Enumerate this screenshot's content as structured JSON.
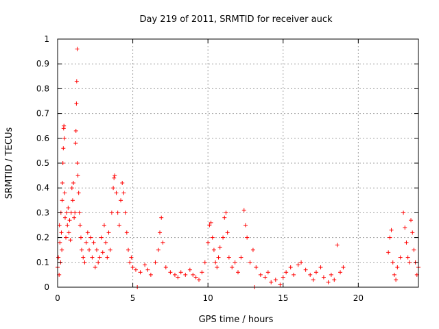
{
  "chart_data": {
    "type": "scatter",
    "title": "Day 219 of 2011, SRMTID for receiver auck",
    "xlabel": "GPS time / hours",
    "ylabel": "SRMTID / TECUs",
    "xlim": [
      0,
      24
    ],
    "ylim": [
      0,
      1
    ],
    "x_ticks": [
      0,
      5,
      10,
      15,
      20
    ],
    "y_ticks": [
      0,
      0.1,
      0.2,
      0.3,
      0.4,
      0.5,
      0.6,
      0.7,
      0.8,
      0.9,
      1
    ],
    "x_tick_labels": [
      "0",
      "5",
      "10",
      "15",
      "20"
    ],
    "y_tick_labels": [
      "0",
      "0.1",
      "0.2",
      "0.3",
      "0.4",
      "0.5",
      "0.6",
      "0.7",
      "0.8",
      "0.9",
      "1"
    ],
    "grid": true,
    "marker": "+",
    "series_color": "#ff0000",
    "points": [
      [
        0.0,
        0.08
      ],
      [
        0.05,
        0.12
      ],
      [
        0.1,
        0.05
      ],
      [
        0.12,
        0.25
      ],
      [
        0.15,
        0.18
      ],
      [
        0.2,
        0.1
      ],
      [
        0.22,
        0.3
      ],
      [
        0.25,
        0.22
      ],
      [
        0.28,
        0.15
      ],
      [
        0.3,
        0.35
      ],
      [
        0.32,
        0.42
      ],
      [
        0.35,
        0.5
      ],
      [
        0.38,
        0.56
      ],
      [
        0.4,
        0.64
      ],
      [
        0.42,
        0.65
      ],
      [
        0.45,
        0.6
      ],
      [
        0.48,
        0.38
      ],
      [
        0.5,
        0.28
      ],
      [
        0.55,
        0.2
      ],
      [
        0.6,
        0.3
      ],
      [
        0.65,
        0.25
      ],
      [
        0.7,
        0.32
      ],
      [
        0.75,
        0.22
      ],
      [
        0.8,
        0.27
      ],
      [
        0.85,
        0.19
      ],
      [
        0.9,
        0.3
      ],
      [
        0.95,
        0.4
      ],
      [
        1.0,
        0.35
      ],
      [
        1.05,
        0.42
      ],
      [
        1.1,
        0.28
      ],
      [
        1.15,
        0.3
      ],
      [
        1.2,
        0.58
      ],
      [
        1.22,
        0.63
      ],
      [
        1.25,
        0.74
      ],
      [
        1.27,
        0.83
      ],
      [
        1.3,
        0.96
      ],
      [
        1.32,
        0.5
      ],
      [
        1.35,
        0.45
      ],
      [
        1.4,
        0.38
      ],
      [
        1.45,
        0.3
      ],
      [
        1.5,
        0.25
      ],
      [
        1.55,
        0.2
      ],
      [
        1.6,
        0.15
      ],
      [
        1.7,
        0.12
      ],
      [
        1.8,
        0.1
      ],
      [
        1.9,
        0.18
      ],
      [
        2.0,
        0.22
      ],
      [
        2.1,
        0.15
      ],
      [
        2.2,
        0.2
      ],
      [
        2.3,
        0.12
      ],
      [
        2.4,
        0.18
      ],
      [
        2.5,
        0.08
      ],
      [
        2.6,
        0.15
      ],
      [
        2.7,
        0.1
      ],
      [
        2.8,
        0.12
      ],
      [
        2.9,
        0.2
      ],
      [
        3.0,
        0.14
      ],
      [
        3.1,
        0.25
      ],
      [
        3.2,
        0.18
      ],
      [
        3.3,
        0.12
      ],
      [
        3.4,
        0.22
      ],
      [
        3.5,
        0.15
      ],
      [
        3.6,
        0.3
      ],
      [
        3.7,
        0.4
      ],
      [
        3.75,
        0.44
      ],
      [
        3.8,
        0.45
      ],
      [
        3.9,
        0.38
      ],
      [
        4.0,
        0.3
      ],
      [
        4.1,
        0.25
      ],
      [
        4.2,
        0.35
      ],
      [
        4.3,
        0.42
      ],
      [
        4.4,
        0.38
      ],
      [
        4.5,
        0.3
      ],
      [
        4.6,
        0.22
      ],
      [
        4.7,
        0.15
      ],
      [
        4.8,
        0.1
      ],
      [
        4.9,
        0.12
      ],
      [
        5.0,
        0.08
      ],
      [
        5.2,
        0.07
      ],
      [
        5.3,
        0.0
      ],
      [
        5.5,
        0.06
      ],
      [
        5.8,
        0.09
      ],
      [
        6.0,
        0.07
      ],
      [
        6.2,
        0.05
      ],
      [
        6.5,
        0.1
      ],
      [
        6.7,
        0.15
      ],
      [
        6.8,
        0.22
      ],
      [
        6.9,
        0.28
      ],
      [
        7.0,
        0.18
      ],
      [
        7.2,
        0.08
      ],
      [
        7.5,
        0.06
      ],
      [
        7.8,
        0.05
      ],
      [
        8.0,
        0.04
      ],
      [
        8.2,
        0.06
      ],
      [
        8.5,
        0.05
      ],
      [
        8.8,
        0.07
      ],
      [
        9.0,
        0.05
      ],
      [
        9.2,
        0.04
      ],
      [
        9.4,
        0.03
      ],
      [
        9.6,
        0.06
      ],
      [
        9.8,
        0.1
      ],
      [
        10.0,
        0.18
      ],
      [
        10.1,
        0.25
      ],
      [
        10.2,
        0.26
      ],
      [
        10.3,
        0.2
      ],
      [
        10.4,
        0.15
      ],
      [
        10.5,
        0.1
      ],
      [
        10.6,
        0.08
      ],
      [
        10.7,
        0.12
      ],
      [
        10.8,
        0.16
      ],
      [
        11.0,
        0.2
      ],
      [
        11.1,
        0.28
      ],
      [
        11.2,
        0.3
      ],
      [
        11.3,
        0.22
      ],
      [
        11.4,
        0.12
      ],
      [
        11.6,
        0.08
      ],
      [
        11.8,
        0.1
      ],
      [
        12.0,
        0.06
      ],
      [
        12.2,
        0.12
      ],
      [
        12.4,
        0.31
      ],
      [
        12.5,
        0.25
      ],
      [
        12.6,
        0.2
      ],
      [
        12.8,
        0.1
      ],
      [
        13.0,
        0.15
      ],
      [
        13.1,
        0.0
      ],
      [
        13.2,
        0.08
      ],
      [
        13.5,
        0.05
      ],
      [
        13.8,
        0.04
      ],
      [
        14.0,
        0.06
      ],
      [
        14.2,
        0.02
      ],
      [
        14.5,
        0.03
      ],
      [
        14.8,
        0.01
      ],
      [
        15.0,
        0.04
      ],
      [
        15.2,
        0.06
      ],
      [
        15.5,
        0.08
      ],
      [
        15.7,
        0.05
      ],
      [
        16.0,
        0.09
      ],
      [
        16.2,
        0.1
      ],
      [
        16.5,
        0.07
      ],
      [
        16.8,
        0.05
      ],
      [
        17.0,
        0.03
      ],
      [
        17.2,
        0.06
      ],
      [
        17.5,
        0.08
      ],
      [
        17.7,
        0.04
      ],
      [
        18.0,
        0.02
      ],
      [
        18.2,
        0.05
      ],
      [
        18.4,
        0.03
      ],
      [
        18.6,
        0.17
      ],
      [
        18.8,
        0.06
      ],
      [
        19.0,
        0.08
      ],
      [
        22.0,
        0.14
      ],
      [
        22.1,
        0.2
      ],
      [
        22.2,
        0.23
      ],
      [
        22.3,
        0.1
      ],
      [
        22.4,
        0.05
      ],
      [
        22.5,
        0.03
      ],
      [
        22.6,
        0.08
      ],
      [
        22.8,
        0.12
      ],
      [
        23.0,
        0.3
      ],
      [
        23.1,
        0.24
      ],
      [
        23.2,
        0.18
      ],
      [
        23.3,
        0.12
      ],
      [
        23.4,
        0.1
      ],
      [
        23.5,
        0.27
      ],
      [
        23.6,
        0.22
      ],
      [
        23.7,
        0.15
      ],
      [
        23.8,
        0.1
      ],
      [
        23.9,
        0.05
      ],
      [
        24.0,
        0.08
      ]
    ]
  }
}
